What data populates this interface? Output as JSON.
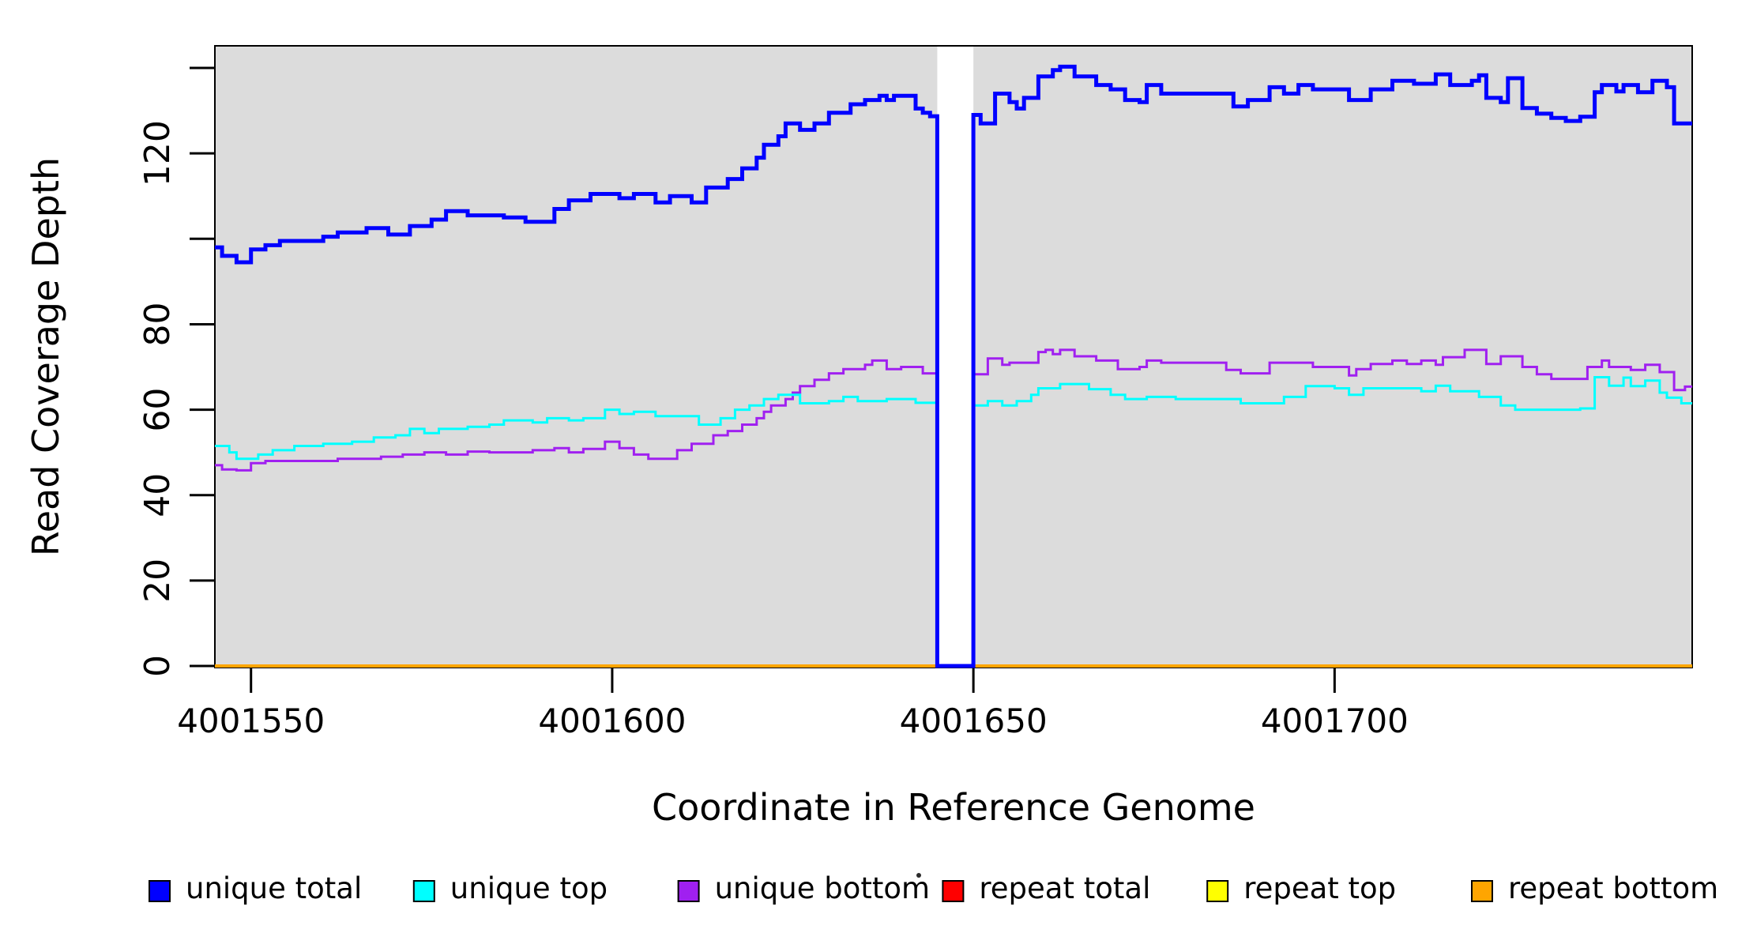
{
  "figure": {
    "ylabel": "Read Coverage Depth",
    "xlabel": "Coordinate in Reference Genome"
  },
  "chart_data": {
    "type": "line",
    "subtype": "step",
    "title": "",
    "xlabel": "Coordinate in Reference Genome",
    "ylabel": "Read Coverage Depth",
    "xlim": [
      4001545,
      4001749.5
    ],
    "ylim": [
      0,
      145
    ],
    "grid": false,
    "plot_bg": "#DCDCDC",
    "gap_region": {
      "x_start": 4001645,
      "x_end": 4001650,
      "color": "#FFFFFF"
    },
    "x_ticks": [
      {
        "value": 4001550,
        "label": "4001550"
      },
      {
        "value": 4001600,
        "label": "4001600"
      },
      {
        "value": 4001650,
        "label": "4001650"
      },
      {
        "value": 4001700,
        "label": "4001700"
      }
    ],
    "y_ticks": [
      {
        "value": 0,
        "label": "0"
      },
      {
        "value": 20,
        "label": "20"
      },
      {
        "value": 40,
        "label": "40"
      },
      {
        "value": 60,
        "label": "60"
      },
      {
        "value": 80,
        "label": "80"
      },
      {
        "value": 100,
        "label": ""
      },
      {
        "value": 120,
        "label": "120"
      },
      {
        "value": 140,
        "label": ""
      }
    ],
    "legend_position": "bottom",
    "legend": [
      {
        "label": "unique total",
        "color": "#0000FF"
      },
      {
        "label": "unique top",
        "color": "#00FFFF"
      },
      {
        "label": "unique bottom",
        "color": "#A020F0"
      },
      {
        "label": "repeat total",
        "color": "#FF0000"
      },
      {
        "label": "repeat top",
        "color": "#FFFF00"
      },
      {
        "label": "repeat bottom",
        "color": "#FFA500"
      }
    ],
    "series": [
      {
        "name": "repeat total",
        "color": "#FF0000",
        "width": 3,
        "points": [
          [
            4001545,
            0
          ]
        ]
      },
      {
        "name": "repeat top",
        "color": "#FFFF00",
        "width": 3,
        "points": [
          [
            4001545,
            0
          ]
        ]
      },
      {
        "name": "repeat bottom",
        "color": "#FFA500",
        "width": 4,
        "points": [
          [
            4001545,
            0
          ]
        ]
      },
      {
        "name": "unique bottom",
        "color": "#A020F0",
        "width": 3,
        "points": [
          [
            4001545,
            47
          ],
          [
            4001546,
            46
          ],
          [
            4001548,
            45.8
          ],
          [
            4001550,
            47.5
          ],
          [
            4001552,
            48
          ],
          [
            4001562,
            48.5
          ],
          [
            4001568,
            49
          ],
          [
            4001571,
            49.5
          ],
          [
            4001574,
            50
          ],
          [
            4001577,
            49.5
          ],
          [
            4001580,
            50.2
          ],
          [
            4001583,
            50
          ],
          [
            4001589,
            50.5
          ],
          [
            4001592,
            51
          ],
          [
            4001594,
            50
          ],
          [
            4001596,
            50.8
          ],
          [
            4001599,
            52.5
          ],
          [
            4001601,
            51
          ],
          [
            4001603,
            49.5
          ],
          [
            4001605,
            48.5
          ],
          [
            4001609,
            50.5
          ],
          [
            4001611,
            52
          ],
          [
            4001614,
            54
          ],
          [
            4001616,
            55
          ],
          [
            4001618,
            56.5
          ],
          [
            4001620,
            58
          ],
          [
            4001621,
            59.5
          ],
          [
            4001622,
            61
          ],
          [
            4001624,
            62.5
          ],
          [
            4001625,
            64
          ],
          [
            4001626,
            65.5
          ],
          [
            4001628,
            67
          ],
          [
            4001630,
            68.5
          ],
          [
            4001632,
            69.5
          ],
          [
            4001635,
            70.5
          ],
          [
            4001636,
            71.5
          ],
          [
            4001638,
            69.5
          ],
          [
            4001640,
            70
          ],
          [
            4001643,
            68.5
          ],
          [
            4001645,
            0
          ],
          [
            4001650,
            68.3
          ],
          [
            4001652,
            72
          ],
          [
            4001654,
            70.5
          ],
          [
            4001655,
            71
          ],
          [
            4001659,
            73.5
          ],
          [
            4001660,
            74
          ],
          [
            4001661,
            73
          ],
          [
            4001662,
            74
          ],
          [
            4001664,
            72.5
          ],
          [
            4001667,
            71.5
          ],
          [
            4001670,
            69.5
          ],
          [
            4001673,
            70
          ],
          [
            4001674,
            71.5
          ],
          [
            4001676,
            71
          ],
          [
            4001685,
            69.3
          ],
          [
            4001687,
            68.5
          ],
          [
            4001691,
            71
          ],
          [
            4001697,
            70
          ],
          [
            4001702,
            68
          ],
          [
            4001703,
            69.5
          ],
          [
            4001705,
            70.7
          ],
          [
            4001708,
            71.5
          ],
          [
            4001710,
            70.7
          ],
          [
            4001712,
            71.5
          ],
          [
            4001714,
            70.5
          ],
          [
            4001715,
            72.3
          ],
          [
            4001718,
            74
          ],
          [
            4001721,
            70.7
          ],
          [
            4001723,
            72.5
          ],
          [
            4001726,
            70
          ],
          [
            4001728,
            68.3
          ],
          [
            4001730,
            67.2
          ],
          [
            4001735,
            70
          ],
          [
            4001737,
            71.5
          ],
          [
            4001738,
            70
          ],
          [
            4001741,
            69.3
          ],
          [
            4001743,
            70.5
          ],
          [
            4001745,
            68.8
          ],
          [
            4001747,
            64.6
          ],
          [
            4001748.5,
            65.4
          ]
        ]
      },
      {
        "name": "unique top",
        "color": "#00FFFF",
        "width": 3,
        "points": [
          [
            4001545,
            51.5
          ],
          [
            4001547,
            50
          ],
          [
            4001548,
            48.5
          ],
          [
            4001551,
            49.5
          ],
          [
            4001553,
            50.5
          ],
          [
            4001556,
            51.5
          ],
          [
            4001560,
            52
          ],
          [
            4001564,
            52.5
          ],
          [
            4001567,
            53.5
          ],
          [
            4001570,
            54
          ],
          [
            4001572,
            55.5
          ],
          [
            4001574,
            54.5
          ],
          [
            4001576,
            55.5
          ],
          [
            4001580,
            56
          ],
          [
            4001583,
            56.5
          ],
          [
            4001585,
            57.5
          ],
          [
            4001589,
            57
          ],
          [
            4001591,
            58
          ],
          [
            4001594,
            57.5
          ],
          [
            4001596,
            58
          ],
          [
            4001599,
            60
          ],
          [
            4001601,
            59
          ],
          [
            4001603,
            59.5
          ],
          [
            4001606,
            58.5
          ],
          [
            4001612,
            56.5
          ],
          [
            4001615,
            58
          ],
          [
            4001617,
            60
          ],
          [
            4001619,
            61
          ],
          [
            4001621,
            62.5
          ],
          [
            4001623,
            63.5
          ],
          [
            4001626,
            61.5
          ],
          [
            4001630,
            62
          ],
          [
            4001632,
            63
          ],
          [
            4001634,
            62
          ],
          [
            4001638,
            62.5
          ],
          [
            4001642,
            61.6
          ],
          [
            4001645,
            0
          ],
          [
            4001650,
            61
          ],
          [
            4001652,
            62
          ],
          [
            4001654,
            61
          ],
          [
            4001656,
            62
          ],
          [
            4001658,
            63.5
          ],
          [
            4001659,
            65
          ],
          [
            4001662,
            66
          ],
          [
            4001666,
            64.8
          ],
          [
            4001669,
            63.5
          ],
          [
            4001671,
            62.5
          ],
          [
            4001674,
            63
          ],
          [
            4001678,
            62.5
          ],
          [
            4001687,
            61.5
          ],
          [
            4001693,
            63
          ],
          [
            4001696,
            65.5
          ],
          [
            4001700,
            65
          ],
          [
            4001702,
            63.5
          ],
          [
            4001704,
            65
          ],
          [
            4001712,
            64.3
          ],
          [
            4001714,
            65.6
          ],
          [
            4001716,
            64.3
          ],
          [
            4001720,
            63
          ],
          [
            4001723,
            61
          ],
          [
            4001725,
            60
          ],
          [
            4001734,
            60.3
          ],
          [
            4001736,
            67.6
          ],
          [
            4001738,
            65.6
          ],
          [
            4001740,
            67.5
          ],
          [
            4001741,
            65.5
          ],
          [
            4001743,
            66.8
          ],
          [
            4001745,
            64
          ],
          [
            4001746,
            62.8
          ],
          [
            4001748,
            61.5
          ]
        ]
      },
      {
        "name": "unique total",
        "color": "#0000FF",
        "width": 5,
        "points": [
          [
            4001545,
            98
          ],
          [
            4001546,
            96
          ],
          [
            4001548,
            94.5
          ],
          [
            4001550,
            97.5
          ],
          [
            4001552,
            98.5
          ],
          [
            4001554,
            99.5
          ],
          [
            4001560,
            100.5
          ],
          [
            4001562,
            101.5
          ],
          [
            4001566,
            102.5
          ],
          [
            4001569,
            101
          ],
          [
            4001572,
            103
          ],
          [
            4001575,
            104.5
          ],
          [
            4001577,
            106.5
          ],
          [
            4001580,
            105.5
          ],
          [
            4001585,
            105
          ],
          [
            4001588,
            104
          ],
          [
            4001592,
            107
          ],
          [
            4001594,
            109
          ],
          [
            4001597,
            110.5
          ],
          [
            4001601,
            109.5
          ],
          [
            4001603,
            110.5
          ],
          [
            4001606,
            108.5
          ],
          [
            4001608,
            110
          ],
          [
            4001611,
            108.5
          ],
          [
            4001613,
            112
          ],
          [
            4001616,
            114
          ],
          [
            4001618,
            116.5
          ],
          [
            4001620,
            119
          ],
          [
            4001621,
            122
          ],
          [
            4001623,
            124
          ],
          [
            4001624,
            127
          ],
          [
            4001626,
            125.5
          ],
          [
            4001628,
            127
          ],
          [
            4001630,
            129.5
          ],
          [
            4001633,
            131.5
          ],
          [
            4001635,
            132.5
          ],
          [
            4001637,
            133.5
          ],
          [
            4001638,
            132.5
          ],
          [
            4001639,
            133.5
          ],
          [
            4001642,
            130.5
          ],
          [
            4001643,
            129.5
          ],
          [
            4001644,
            128.7
          ],
          [
            4001645,
            0
          ],
          [
            4001650,
            129
          ],
          [
            4001651,
            127
          ],
          [
            4001653,
            134
          ],
          [
            4001655,
            132
          ],
          [
            4001656,
            130.5
          ],
          [
            4001657,
            133
          ],
          [
            4001659,
            138
          ],
          [
            4001661,
            139.5
          ],
          [
            4001662,
            140.3
          ],
          [
            4001664,
            138
          ],
          [
            4001667,
            136
          ],
          [
            4001669,
            135
          ],
          [
            4001671,
            132.5
          ],
          [
            4001673,
            132
          ],
          [
            4001674,
            136
          ],
          [
            4001676,
            134
          ],
          [
            4001686,
            131
          ],
          [
            4001688,
            132.5
          ],
          [
            4001691,
            135.5
          ],
          [
            4001693,
            134
          ],
          [
            4001695,
            136
          ],
          [
            4001697,
            135
          ],
          [
            4001702,
            132.5
          ],
          [
            4001705,
            135
          ],
          [
            4001708,
            137
          ],
          [
            4001711,
            136.3
          ],
          [
            4001714,
            138.5
          ],
          [
            4001716,
            136
          ],
          [
            4001719,
            137
          ],
          [
            4001720,
            138.3
          ],
          [
            4001721,
            133
          ],
          [
            4001723,
            132
          ],
          [
            4001724,
            137.6
          ],
          [
            4001726,
            130.6
          ],
          [
            4001728,
            129.3
          ],
          [
            4001730,
            128.3
          ],
          [
            4001732,
            127.6
          ],
          [
            4001734,
            128.6
          ],
          [
            4001736,
            134.3
          ],
          [
            4001737,
            136
          ],
          [
            4001739,
            134.5
          ],
          [
            4001740,
            136
          ],
          [
            4001742,
            134.3
          ],
          [
            4001744,
            137
          ],
          [
            4001746,
            135.5
          ],
          [
            4001747,
            127
          ]
        ]
      }
    ]
  }
}
